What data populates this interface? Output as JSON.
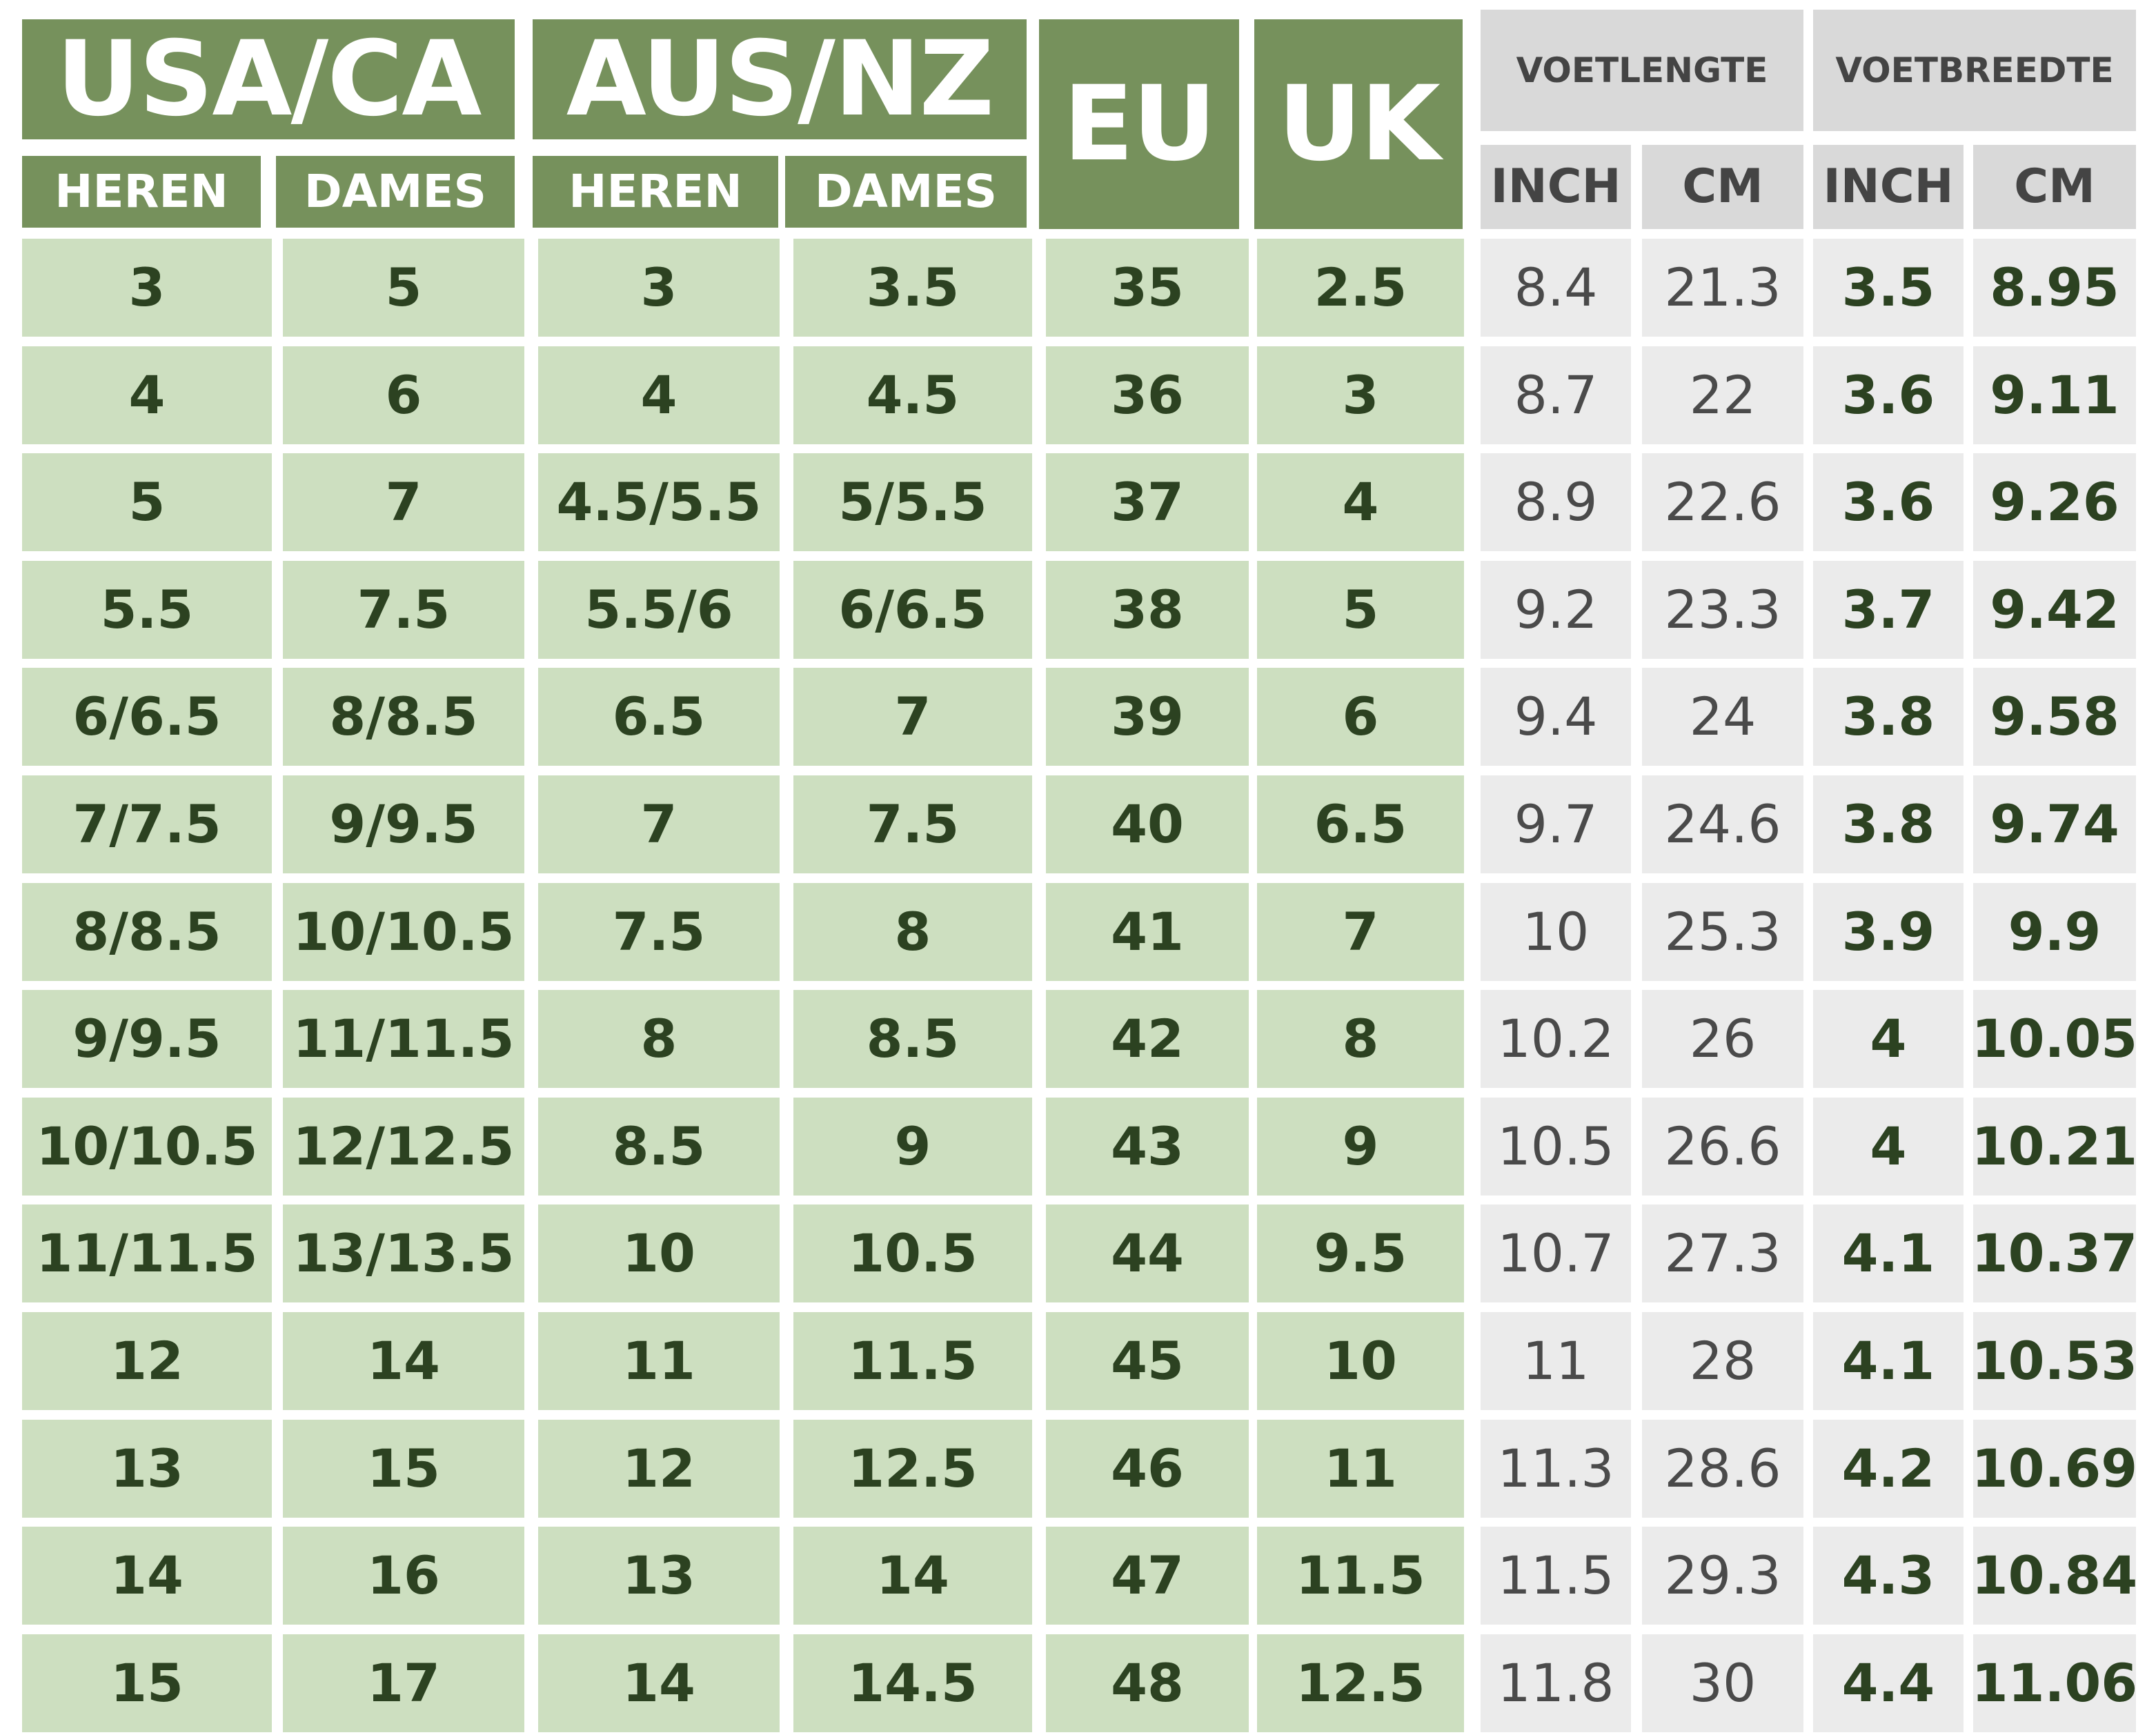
{
  "headers": {
    "usa": "USA/CA",
    "aus": "AUS/NZ",
    "eu": "EU",
    "uk": "UK",
    "heren": "HEREN",
    "dames": "DAMES",
    "voetlengte": "VOETLENGTE",
    "voetbreedte": "VOETBREEDTE",
    "inch": "INCH",
    "cm": "CM"
  },
  "rows": [
    [
      "3",
      "5",
      "3",
      "3.5",
      "35",
      "2.5",
      "8.4",
      "21.3",
      "3.5",
      "8.95"
    ],
    [
      "4",
      "6",
      "4",
      "4.5",
      "36",
      "3",
      "8.7",
      "22",
      "3.6",
      "9.11"
    ],
    [
      "5",
      "7",
      "4.5/5.5",
      "5/5.5",
      "37",
      "4",
      "8.9",
      "22.6",
      "3.6",
      "9.26"
    ],
    [
      "5.5",
      "7.5",
      "5.5/6",
      "6/6.5",
      "38",
      "5",
      "9.2",
      "23.3",
      "3.7",
      "9.42"
    ],
    [
      "6/6.5",
      "8/8.5",
      "6.5",
      "7",
      "39",
      "6",
      "9.4",
      "24",
      "3.8",
      "9.58"
    ],
    [
      "7/7.5",
      "9/9.5",
      "7",
      "7.5",
      "40",
      "6.5",
      "9.7",
      "24.6",
      "3.8",
      "9.74"
    ],
    [
      "8/8.5",
      "10/10.5",
      "7.5",
      "8",
      "41",
      "7",
      "10",
      "25.3",
      "3.9",
      "9.9"
    ],
    [
      "9/9.5",
      "11/11.5",
      "8",
      "8.5",
      "42",
      "8",
      "10.2",
      "26",
      "4",
      "10.05"
    ],
    [
      "10/10.5",
      "12/12.5",
      "8.5",
      "9",
      "43",
      "9",
      "10.5",
      "26.6",
      "4",
      "10.21"
    ],
    [
      "11/11.5",
      "13/13.5",
      "10",
      "10.5",
      "44",
      "9.5",
      "10.7",
      "27.3",
      "4.1",
      "10.37"
    ],
    [
      "12",
      "14",
      "11",
      "11.5",
      "45",
      "10",
      "11",
      "28",
      "4.1",
      "10.53"
    ],
    [
      "13",
      "15",
      "12",
      "12.5",
      "46",
      "11",
      "11.3",
      "28.6",
      "4.2",
      "10.69"
    ],
    [
      "14",
      "16",
      "13",
      "14",
      "47",
      "11.5",
      "11.5",
      "29.3",
      "4.3",
      "10.84"
    ],
    [
      "15",
      "17",
      "14",
      "14.5",
      "48",
      "12.5",
      "11.8",
      "30",
      "4.4",
      "11.06"
    ]
  ],
  "colors": {
    "header_green": "#76915c",
    "cell_green": "#cddfc0",
    "text_green": "#2c4221",
    "header_grey": "#d9d9d9",
    "cell_grey": "#ebebeb",
    "text_grey": "#4a4a4a"
  }
}
